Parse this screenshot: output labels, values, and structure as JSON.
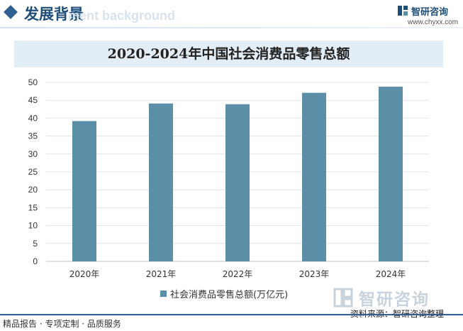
{
  "header": {
    "title": "发展背景",
    "ghost_text": "ment background",
    "logo_name": "智研咨询",
    "logo_url": "www.chyxx.com"
  },
  "chart_data": {
    "type": "bar",
    "title": "2020-2024年中国社会消费品零售总额",
    "categories": [
      "2020年",
      "2021年",
      "2022年",
      "2023年",
      "2024年"
    ],
    "series": [
      {
        "name": "社会消费品零售总额(万亿元)",
        "values": [
          39.2,
          44.1,
          43.9,
          47.1,
          48.8
        ]
      }
    ],
    "y_ticks": [
      "0",
      "5",
      "10",
      "15",
      "20",
      "25",
      "30",
      "35",
      "40",
      "45",
      "50"
    ],
    "ylim": [
      0,
      50
    ],
    "grid": true,
    "legend_position": "bottom",
    "bar_color": "#5b8fa8"
  },
  "watermark": {
    "text": "智研咨询"
  },
  "source": "资料来源：智研咨询整理",
  "footer": "精品报告 · 专项定制 · 品质服务"
}
